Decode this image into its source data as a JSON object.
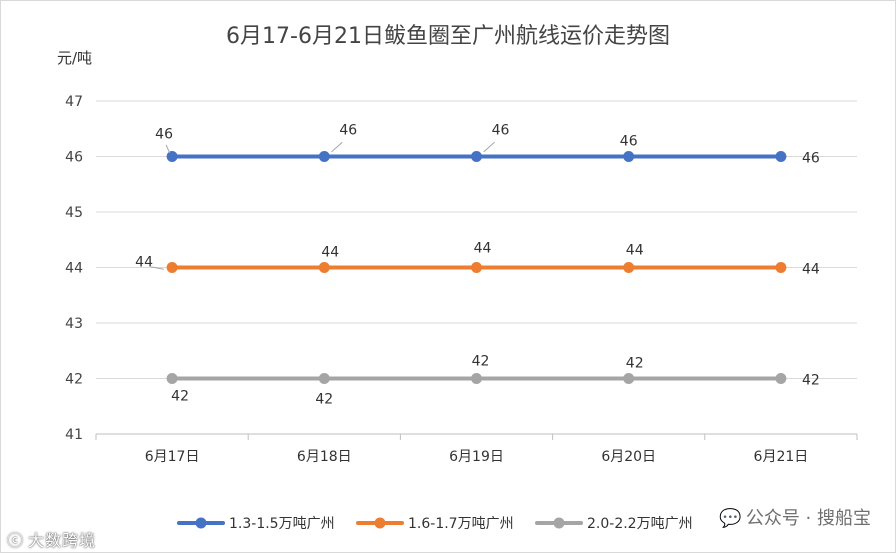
{
  "chart_data": {
    "type": "line",
    "title": "6月17-6月21日鲅鱼圈至广州航线运价走势图",
    "ylabel": "元/吨",
    "xlabel": "",
    "categories": [
      "6月17日",
      "6月18日",
      "6月19日",
      "6月20日",
      "6月21日"
    ],
    "ylim": [
      41,
      47
    ],
    "yticks": [
      41,
      42,
      43,
      44,
      45,
      46,
      47
    ],
    "grid": true,
    "legend_position": "bottom",
    "series": [
      {
        "name": "1.3-1.5万吨广州",
        "color": "#4472c4",
        "values": [
          46,
          46,
          46,
          46,
          46
        ]
      },
      {
        "name": "1.6-1.7万吨广州",
        "color": "#ed7d31",
        "values": [
          44,
          44,
          44,
          44,
          44
        ]
      },
      {
        "name": "2.0-2.2万吨广州",
        "color": "#a5a5a5",
        "values": [
          42,
          42,
          42,
          42,
          42
        ]
      }
    ]
  },
  "watermarks": {
    "right": "公众号 · 搜船宝",
    "right_icon": "wechat-icon",
    "left": "大数跨境",
    "left_icon": "brand-c-icon"
  }
}
